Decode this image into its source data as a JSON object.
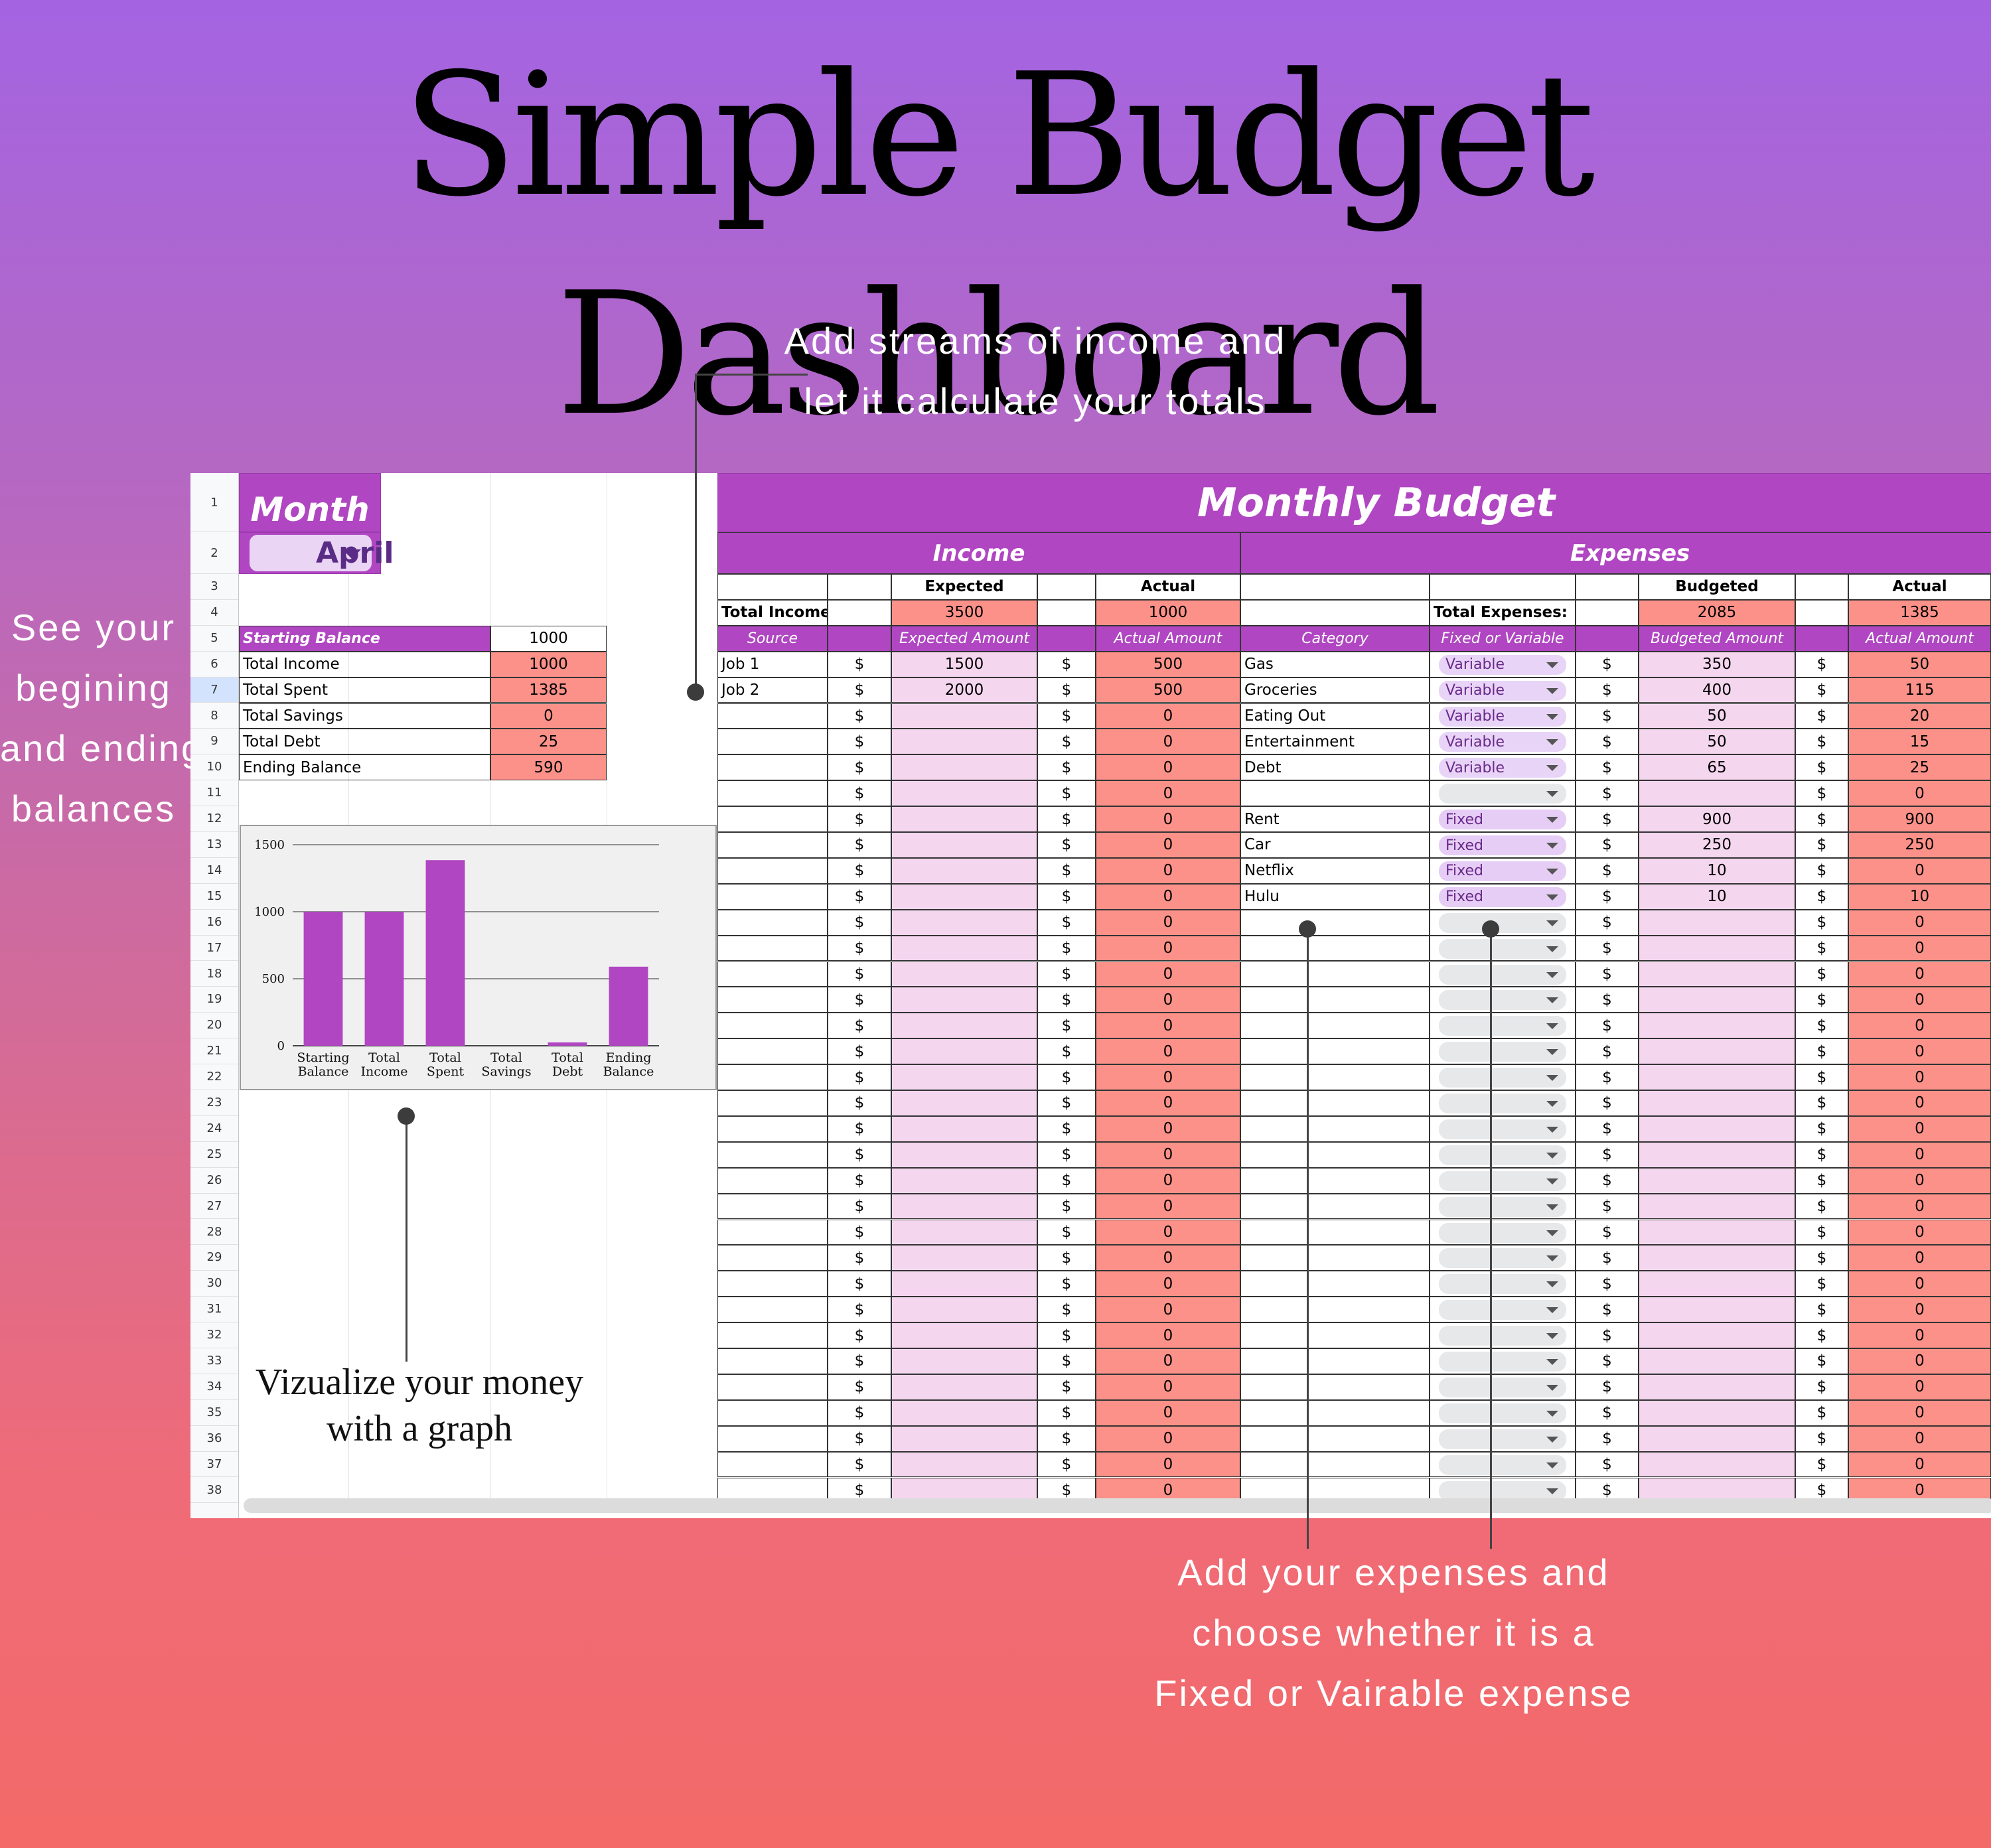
{
  "title": "Simple Budget Dashboard",
  "notes": {
    "income": [
      "Add streams of income and",
      "let it calculate your totals"
    ],
    "balances": [
      "See your",
      "begining",
      "and ending",
      "balances"
    ],
    "graph": [
      "Vizualize your money",
      "with a graph"
    ],
    "expenses": [
      "Add your expenses and",
      "choose whether it is a",
      "Fixed or Vairable expense"
    ]
  },
  "sheet": {
    "row_numbers": [
      "1",
      "2",
      "3",
      "4",
      "5",
      "6",
      "7",
      "8",
      "9",
      "10",
      "11",
      "12",
      "13",
      "14",
      "15",
      "16",
      "17",
      "18",
      "19",
      "20",
      "21",
      "22",
      "23",
      "24",
      "25",
      "26",
      "27",
      "28",
      "29",
      "30",
      "31",
      "32",
      "33",
      "34",
      "35",
      "36",
      "37",
      "38"
    ],
    "month_label": "Month",
    "month_value": "April",
    "summary": [
      {
        "label": "Starting Balance",
        "value": "1000"
      },
      {
        "label": "Total Income",
        "value": "1000"
      },
      {
        "label": "Total Spent",
        "value": "1385"
      },
      {
        "label": "Total Savings",
        "value": "0"
      },
      {
        "label": "Total Debt",
        "value": "25"
      },
      {
        "label": "Ending Balance",
        "value": "590"
      }
    ],
    "banner": "Monthly Budget",
    "income": {
      "header": "Income",
      "expected_label": "Expected",
      "actual_label": "Actual",
      "total_label": "Total Income:",
      "total_expected": "3500",
      "total_actual": "1000",
      "columns": [
        "Source",
        "Expected Amount",
        "Actual Amount"
      ],
      "currency": "$",
      "rows": [
        {
          "source": "Job 1",
          "expected": "1500",
          "actual": "500"
        },
        {
          "source": "Job 2",
          "expected": "2000",
          "actual": "500"
        }
      ],
      "empty_actual": "0"
    },
    "expenses": {
      "header": "Expenses",
      "budgeted_label": "Budgeted",
      "actual_label": "Actual",
      "total_label": "Total Expenses:",
      "total_budgeted": "2085",
      "total_actual": "1385",
      "columns": [
        "Category",
        "Fixed or Variable",
        "Budgeted Amount",
        "Actual Amount"
      ],
      "currency": "$",
      "rows": [
        {
          "category": "Gas",
          "type": "Variable",
          "budgeted": "350",
          "actual": "50"
        },
        {
          "category": "Groceries",
          "type": "Variable",
          "budgeted": "400",
          "actual": "115"
        },
        {
          "category": "Eating Out",
          "type": "Variable",
          "budgeted": "50",
          "actual": "20"
        },
        {
          "category": "Entertainment",
          "type": "Variable",
          "budgeted": "50",
          "actual": "15"
        },
        {
          "category": "Debt",
          "type": "Variable",
          "budgeted": "65",
          "actual": "25"
        },
        {
          "category": "",
          "type": "",
          "budgeted": "",
          "actual": "0"
        },
        {
          "category": "Rent",
          "type": "Fixed",
          "budgeted": "900",
          "actual": "900"
        },
        {
          "category": "Car",
          "type": "Fixed",
          "budgeted": "250",
          "actual": "250"
        },
        {
          "category": "Netflix",
          "type": "Fixed",
          "budgeted": "10",
          "actual": "0"
        },
        {
          "category": "Hulu",
          "type": "Fixed",
          "budgeted": "10",
          "actual": "10"
        }
      ],
      "empty_actual": "0"
    },
    "colors": {
      "purple": "#b046c2",
      "pink": "#f4d6ee",
      "salmon": "#fb9188",
      "variable_pill": "#e8d4f7",
      "fixed_pill": "#e6cdf6",
      "empty_pill": "#e7e8ea"
    }
  },
  "chart_data": {
    "type": "bar",
    "categories": [
      "Starting Balance",
      "Total Income",
      "Total Spent",
      "Total Savings",
      "Total Debt",
      "Ending Balance"
    ],
    "category_lines": [
      [
        "Starting",
        "Balance"
      ],
      [
        "Total",
        "Income"
      ],
      [
        "Total",
        "Spent"
      ],
      [
        "Total",
        "Savings"
      ],
      [
        "Total",
        "Debt"
      ],
      [
        "Ending",
        "Balance"
      ]
    ],
    "values": [
      1000,
      1000,
      1385,
      0,
      25,
      590
    ],
    "ylim": [
      0,
      1500
    ],
    "yticks": [
      "0",
      "500",
      "1000",
      "1500"
    ],
    "bar_color": "#b046c2",
    "grid": true
  }
}
